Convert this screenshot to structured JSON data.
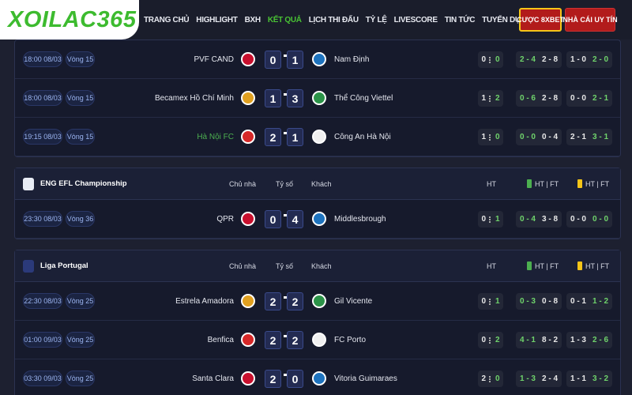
{
  "header": {
    "logo": "XOILAC365",
    "nav": [
      {
        "label": "TRANG CHỦ"
      },
      {
        "label": "HIGHLIGHT"
      },
      {
        "label": "BXH"
      },
      {
        "label": "KẾT QUẢ",
        "active": true
      },
      {
        "label": "LỊCH THI ĐẤU"
      },
      {
        "label": "TỶ LỆ"
      },
      {
        "label": "LIVESCORE"
      },
      {
        "label": "TIN TỨC"
      },
      {
        "label": "TUYỂN DỤNG"
      }
    ],
    "buttons": [
      "CƯỢC 8XBET",
      "NHÀ CÁI UY TÍN"
    ]
  },
  "leagues": [
    {
      "matches": [
        {
          "time": "18:00 08/03",
          "round": "Vòng 15",
          "home": "PVF CAND",
          "score": [
            0,
            1
          ],
          "away": "Nam Định",
          "ht": [
            0,
            0
          ],
          "corners": [
            "2 - 4",
            "2 - 8"
          ],
          "cards": [
            "1 - 0",
            "2 - 0"
          ]
        },
        {
          "time": "18:00 08/03",
          "round": "Vòng 15",
          "home": "Becamex Hồ Chí Minh",
          "score": [
            1,
            3
          ],
          "away": "Thể Công Viettel",
          "ht": [
            1,
            2
          ],
          "corners": [
            "0 - 6",
            "2 - 8"
          ],
          "cards": [
            "0 - 0",
            "2 - 1"
          ]
        },
        {
          "time": "19:15 08/03",
          "round": "Vòng 15",
          "home": "Hà Nội FC",
          "home_color": "#4caf50",
          "score": [
            2,
            1
          ],
          "away": "Công An Hà Nội",
          "ht": [
            1,
            0
          ],
          "corners": [
            "0 - 0",
            "0 - 4"
          ],
          "cards": [
            "2 - 1",
            "3 - 1"
          ]
        }
      ]
    },
    {
      "name": "ENG EFL Championship",
      "columns": [
        "Chủ nhà",
        "Tỷ số",
        "Khách",
        "HT",
        "HT | FT",
        "HT | FT"
      ],
      "matches": [
        {
          "time": "23:30 08/03",
          "round": "Vòng 36",
          "home": "QPR",
          "score": [
            0,
            4
          ],
          "away": "Middlesbrough",
          "ht": [
            0,
            1
          ],
          "corners": [
            "0 - 4",
            "3 - 8"
          ],
          "cards": [
            "0 - 0",
            "0 - 0"
          ]
        }
      ]
    },
    {
      "name": "Liga Portugal",
      "columns": [
        "Chủ nhà",
        "Tỷ số",
        "Khách",
        "HT",
        "HT | FT",
        "HT | FT"
      ],
      "matches": [
        {
          "time": "22:30 08/03",
          "round": "Vòng 25",
          "home": "Estrela Amadora",
          "score": [
            2,
            2
          ],
          "away": "Gil Vicente",
          "ht": [
            0,
            1
          ],
          "corners": [
            "0 - 3",
            "0 - 8"
          ],
          "cards": [
            "0 - 1",
            "1 - 2"
          ]
        },
        {
          "time": "01:00 09/03",
          "round": "Vòng 25",
          "home": "Benfica",
          "score": [
            2,
            2
          ],
          "away": "FC Porto",
          "ht": [
            0,
            2
          ],
          "corners": [
            "4 - 1",
            "8 - 2"
          ],
          "cards": [
            "1 - 3",
            "2 - 6"
          ]
        },
        {
          "time": "03:30 09/03",
          "round": "Vòng 25",
          "home": "Santa Clara",
          "score": [
            2,
            0
          ],
          "away": "Vitoria Guimaraes",
          "ht": [
            2,
            0
          ],
          "corners": [
            "1 - 3",
            "2 - 4"
          ],
          "cards": [
            "1 - 1",
            "3 - 2"
          ]
        }
      ]
    }
  ]
}
